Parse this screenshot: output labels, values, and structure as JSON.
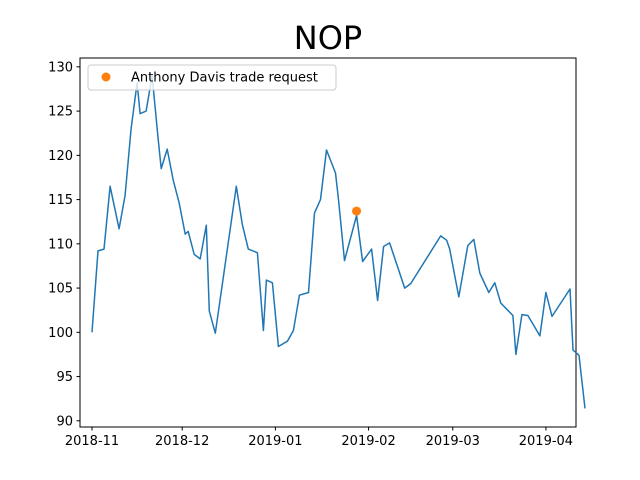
{
  "chart_data": {
    "type": "line",
    "title": "NOP",
    "xlabel": "",
    "ylabel": "",
    "x_axis_type": "date",
    "xlim": [
      "2018-10-28",
      "2019-04-11"
    ],
    "ylim": [
      89.3,
      131.0
    ],
    "x_ticks": [
      {
        "date": "2018-11-01",
        "label": "2018-11"
      },
      {
        "date": "2018-12-01",
        "label": "2018-12"
      },
      {
        "date": "2019-01-01",
        "label": "2019-01"
      },
      {
        "date": "2019-02-01",
        "label": "2019-02"
      },
      {
        "date": "2019-03-01",
        "label": "2019-03"
      },
      {
        "date": "2019-04-01",
        "label": "2019-04"
      }
    ],
    "y_ticks": [
      90,
      95,
      100,
      105,
      110,
      115,
      120,
      125,
      130
    ],
    "grid": false,
    "legend_position": "top-left",
    "series": [
      {
        "name": "",
        "color": "#1f77b4",
        "points": [
          [
            "2018-11-01",
            100.0
          ],
          [
            "2018-11-03",
            109.2
          ],
          [
            "2018-11-05",
            109.4
          ],
          [
            "2018-11-07",
            116.5
          ],
          [
            "2018-11-10",
            111.7
          ],
          [
            "2018-11-12",
            115.5
          ],
          [
            "2018-11-14",
            123.0
          ],
          [
            "2018-11-16",
            128.2
          ],
          [
            "2018-11-17",
            124.7
          ],
          [
            "2018-11-19",
            125.0
          ],
          [
            "2018-11-21",
            129.0
          ],
          [
            "2018-11-23",
            121.8
          ],
          [
            "2018-11-24",
            118.5
          ],
          [
            "2018-11-26",
            120.7
          ],
          [
            "2018-11-28",
            117.2
          ],
          [
            "2018-11-30",
            114.6
          ],
          [
            "2018-12-02",
            111.1
          ],
          [
            "2018-12-03",
            111.4
          ],
          [
            "2018-12-05",
            108.8
          ],
          [
            "2018-12-07",
            108.3
          ],
          [
            "2018-12-09",
            112.1
          ],
          [
            "2018-12-10",
            102.4
          ],
          [
            "2018-12-12",
            99.9
          ],
          [
            "2018-12-15",
            107.0
          ],
          [
            "2018-12-19",
            116.5
          ],
          [
            "2018-12-21",
            112.2
          ],
          [
            "2018-12-23",
            109.4
          ],
          [
            "2018-12-26",
            109.0
          ],
          [
            "2018-12-28",
            100.2
          ],
          [
            "2018-12-29",
            105.9
          ],
          [
            "2018-12-31",
            105.6
          ],
          [
            "2019-01-02",
            98.4
          ],
          [
            "2019-01-05",
            99.0
          ],
          [
            "2019-01-07",
            100.2
          ],
          [
            "2019-01-09",
            104.2
          ],
          [
            "2019-01-12",
            104.5
          ],
          [
            "2019-01-14",
            113.5
          ],
          [
            "2019-01-16",
            115.0
          ],
          [
            "2019-01-18",
            120.6
          ],
          [
            "2019-01-21",
            118.0
          ],
          [
            "2019-01-22",
            115.0
          ],
          [
            "2019-01-24",
            108.1
          ],
          [
            "2019-01-28",
            113.2
          ],
          [
            "2019-01-30",
            108.0
          ],
          [
            "2019-02-02",
            109.4
          ],
          [
            "2019-02-04",
            103.6
          ],
          [
            "2019-02-06",
            109.7
          ],
          [
            "2019-02-08",
            110.1
          ],
          [
            "2019-02-13",
            105.0
          ],
          [
            "2019-02-15",
            105.5
          ],
          [
            "2019-02-25",
            110.9
          ],
          [
            "2019-02-27",
            110.4
          ],
          [
            "2019-02-28",
            109.4
          ],
          [
            "2019-03-03",
            104.0
          ],
          [
            "2019-03-06",
            109.8
          ],
          [
            "2019-03-08",
            110.5
          ],
          [
            "2019-03-10",
            106.7
          ],
          [
            "2019-03-13",
            104.5
          ],
          [
            "2019-03-15",
            105.6
          ],
          [
            "2019-03-17",
            103.3
          ],
          [
            "2019-03-21",
            101.9
          ],
          [
            "2019-03-22",
            97.5
          ],
          [
            "2019-03-24",
            102.0
          ],
          [
            "2019-03-26",
            101.9
          ],
          [
            "2019-03-30",
            99.6
          ],
          [
            "2019-04-01",
            104.5
          ],
          [
            "2019-04-03",
            101.8
          ],
          [
            "2019-04-09",
            104.9
          ],
          [
            "2019-04-10",
            98.0
          ],
          [
            "2019-04-12",
            97.4
          ],
          [
            "2019-04-14",
            91.4
          ]
        ]
      }
    ],
    "markers": [
      {
        "name": "Anthony Davis trade request",
        "date": "2019-01-28",
        "value": 113.7,
        "color": "#ff7f0e"
      }
    ]
  }
}
